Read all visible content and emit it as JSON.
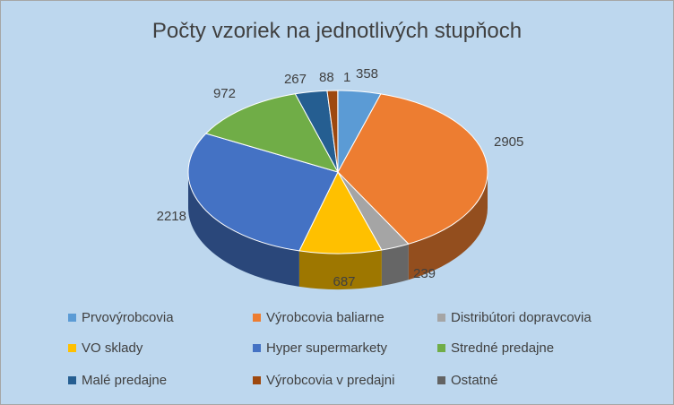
{
  "chart_data": {
    "type": "pie",
    "title": "Počty vzoriek na jednotlivých stupňoch",
    "legend_position": "bottom",
    "slices": [
      {
        "name": "Prvovýrobcovia",
        "value": 358,
        "color": "#5b9bd5"
      },
      {
        "name": "Výrobcovia baliarne",
        "value": 2905,
        "color": "#ed7d31"
      },
      {
        "name": "Distribútori dopravcovia",
        "value": 239,
        "color": "#a5a5a5"
      },
      {
        "name": "VO sklady",
        "value": 687,
        "color": "#ffc000"
      },
      {
        "name": "Hyper supermarkety",
        "value": 2218,
        "color": "#4472c4"
      },
      {
        "name": "Stredné predajne",
        "value": 972,
        "color": "#70ad47"
      },
      {
        "name": "Malé predajne",
        "value": 267,
        "color": "#255e91"
      },
      {
        "name": "Výrobcovia v predajni",
        "value": 88,
        "color": "#9e480e"
      },
      {
        "name": "Ostatné",
        "value": 1,
        "color": "#636363"
      }
    ]
  }
}
